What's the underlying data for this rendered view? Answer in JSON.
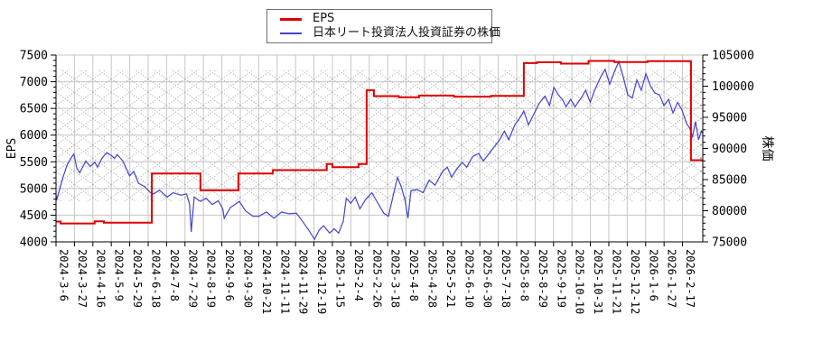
{
  "legend": {
    "items": [
      {
        "label": "EPS",
        "color": "#dd0000",
        "thickness": 3
      },
      {
        "label": "日本リート投資法人投資証券の株価",
        "color": "#4444cc",
        "thickness": 2
      }
    ]
  },
  "chart_data": {
    "type": "line",
    "title": "",
    "grid": {
      "vertical": "every-x-tick",
      "horizontal": "every-500-eps",
      "color": "#c6c6c6"
    },
    "hatch_band": {
      "axis": "right",
      "from": 81500,
      "to": 102700,
      "pattern": "dotted-crosshatch",
      "color": "#999999"
    },
    "left_axis": {
      "label": "EPS",
      "min": 4000,
      "max": 7500,
      "major_step": 500,
      "minor_step": 100,
      "ticks": [
        4000,
        4500,
        5000,
        5500,
        6000,
        6500,
        7000,
        7500
      ]
    },
    "right_axis": {
      "label": "株価",
      "min": 75000,
      "max": 105000,
      "major_step": 5000,
      "minor_step": 1000,
      "ticks": [
        75000,
        80000,
        85000,
        90000,
        95000,
        100000,
        105000
      ]
    },
    "x_axis": {
      "t_max": 35.1,
      "tick_labels": [
        "2024-3-6",
        "2024-3-27",
        "2024-4-16",
        "2024-5-9",
        "2024-5-29",
        "2024-6-18",
        "2024-7-8",
        "2024-7-29",
        "2024-8-19",
        "2024-9-6",
        "2024-9-30",
        "2024-10-21",
        "2024-11-11",
        "2024-11-29",
        "2024-12-19",
        "2025-1-15",
        "2025-2-4",
        "2025-2-26",
        "2025-3-18",
        "2025-4-8",
        "2025-4-28",
        "2025-5-21",
        "2025-6-10",
        "2025-6-30",
        "2025-7-18",
        "2025-8-8",
        "2025-8-29",
        "2025-9-19",
        "2025-10-10",
        "2025-10-31",
        "2025-11-21",
        "2025-12-12",
        "2026-1-6",
        "2026-1-27",
        "2026-2-17"
      ]
    },
    "series": [
      {
        "name": "EPS",
        "axis": "left",
        "color": "#dd0000",
        "width": 2,
        "style": "step",
        "points": [
          [
            0.0,
            4380
          ],
          [
            0.25,
            4380
          ],
          [
            0.25,
            4345
          ],
          [
            2.1,
            4345
          ],
          [
            2.1,
            4385
          ],
          [
            2.6,
            4385
          ],
          [
            2.6,
            4360
          ],
          [
            5.2,
            4360
          ],
          [
            5.2,
            5280
          ],
          [
            7.84,
            5280
          ],
          [
            7.84,
            4965
          ],
          [
            9.9,
            4965
          ],
          [
            9.9,
            5280
          ],
          [
            11.76,
            5280
          ],
          [
            11.76,
            5345
          ],
          [
            14.69,
            5345
          ],
          [
            14.69,
            5460
          ],
          [
            15.0,
            5460
          ],
          [
            15.0,
            5400
          ],
          [
            16.42,
            5400
          ],
          [
            16.42,
            5460
          ],
          [
            16.86,
            5460
          ],
          [
            16.86,
            6840
          ],
          [
            17.25,
            6840
          ],
          [
            17.25,
            6730
          ],
          [
            18.6,
            6730
          ],
          [
            18.6,
            6710
          ],
          [
            19.7,
            6710
          ],
          [
            19.7,
            6740
          ],
          [
            21.6,
            6740
          ],
          [
            21.6,
            6720
          ],
          [
            23.6,
            6720
          ],
          [
            23.6,
            6735
          ],
          [
            25.39,
            6735
          ],
          [
            25.39,
            7350
          ],
          [
            26.1,
            7350
          ],
          [
            26.1,
            7365
          ],
          [
            27.4,
            7365
          ],
          [
            27.4,
            7340
          ],
          [
            28.9,
            7340
          ],
          [
            28.9,
            7390
          ],
          [
            30.3,
            7390
          ],
          [
            30.3,
            7370
          ],
          [
            32.1,
            7370
          ],
          [
            32.1,
            7385
          ],
          [
            34.46,
            7385
          ],
          [
            34.46,
            5530
          ],
          [
            35.1,
            5530
          ]
        ]
      },
      {
        "name": "日本リート投資法人投資証券の株価",
        "axis": "right",
        "color": "#4444cc",
        "width": 1.2,
        "style": "line",
        "points": [
          [
            0.0,
            82600
          ],
          [
            0.03,
            81700
          ],
          [
            0.2,
            83500
          ],
          [
            0.39,
            85500
          ],
          [
            0.6,
            87300
          ],
          [
            0.8,
            88400
          ],
          [
            0.97,
            89100
          ],
          [
            1.13,
            86800
          ],
          [
            1.29,
            86100
          ],
          [
            1.62,
            88000
          ],
          [
            1.86,
            87100
          ],
          [
            2.11,
            87800
          ],
          [
            2.25,
            87000
          ],
          [
            2.51,
            88500
          ],
          [
            2.76,
            89350
          ],
          [
            2.99,
            88900
          ],
          [
            3.17,
            88400
          ],
          [
            3.33,
            89000
          ],
          [
            3.63,
            88000
          ],
          [
            3.99,
            85600
          ],
          [
            4.22,
            86300
          ],
          [
            4.48,
            84400
          ],
          [
            4.8,
            83900
          ],
          [
            5.13,
            82900
          ],
          [
            5.29,
            82700
          ],
          [
            5.62,
            83300
          ],
          [
            6.03,
            82200
          ],
          [
            6.36,
            82900
          ],
          [
            6.76,
            82500
          ],
          [
            7.09,
            82700
          ],
          [
            7.25,
            81000
          ],
          [
            7.34,
            76600
          ],
          [
            7.5,
            82200
          ],
          [
            7.83,
            81500
          ],
          [
            8.15,
            82000
          ],
          [
            8.48,
            81000
          ],
          [
            8.81,
            81600
          ],
          [
            9.05,
            80300
          ],
          [
            9.13,
            78800
          ],
          [
            9.46,
            80500
          ],
          [
            9.95,
            81500
          ],
          [
            10.28,
            80000
          ],
          [
            10.69,
            79100
          ],
          [
            11.01,
            79100
          ],
          [
            11.42,
            79800
          ],
          [
            11.83,
            78800
          ],
          [
            12.24,
            79800
          ],
          [
            12.65,
            79500
          ],
          [
            13.05,
            79600
          ],
          [
            13.38,
            78300
          ],
          [
            13.71,
            76900
          ],
          [
            14.03,
            75400
          ],
          [
            14.28,
            76900
          ],
          [
            14.52,
            77600
          ],
          [
            14.85,
            76400
          ],
          [
            15.1,
            77100
          ],
          [
            15.34,
            76400
          ],
          [
            15.59,
            78300
          ],
          [
            15.75,
            82000
          ],
          [
            16.0,
            81200
          ],
          [
            16.24,
            82200
          ],
          [
            16.49,
            80300
          ],
          [
            16.8,
            81800
          ],
          [
            17.14,
            82900
          ],
          [
            17.45,
            81300
          ],
          [
            17.79,
            79600
          ],
          [
            18.04,
            79100
          ],
          [
            18.28,
            82200
          ],
          [
            18.53,
            85350
          ],
          [
            18.73,
            83900
          ],
          [
            18.94,
            81700
          ],
          [
            19.1,
            78800
          ],
          [
            19.26,
            83200
          ],
          [
            19.59,
            83400
          ],
          [
            19.92,
            82900
          ],
          [
            20.25,
            84900
          ],
          [
            20.57,
            84100
          ],
          [
            20.98,
            86300
          ],
          [
            21.23,
            87000
          ],
          [
            21.47,
            85400
          ],
          [
            21.72,
            86600
          ],
          [
            22.04,
            87750
          ],
          [
            22.29,
            87000
          ],
          [
            22.61,
            88700
          ],
          [
            22.94,
            89200
          ],
          [
            23.19,
            88000
          ],
          [
            23.51,
            89200
          ],
          [
            23.76,
            90200
          ],
          [
            24.08,
            91400
          ],
          [
            24.33,
            92800
          ],
          [
            24.57,
            91400
          ],
          [
            24.9,
            93800
          ],
          [
            25.15,
            94800
          ],
          [
            25.39,
            96000
          ],
          [
            25.64,
            93800
          ],
          [
            25.96,
            95700
          ],
          [
            26.21,
            97200
          ],
          [
            26.53,
            98400
          ],
          [
            26.78,
            96900
          ],
          [
            27.02,
            99800
          ],
          [
            27.27,
            98600
          ],
          [
            27.51,
            97700
          ],
          [
            27.68,
            96700
          ],
          [
            27.93,
            97900
          ],
          [
            28.17,
            96700
          ],
          [
            28.5,
            98100
          ],
          [
            28.74,
            99350
          ],
          [
            28.99,
            97400
          ],
          [
            29.23,
            99350
          ],
          [
            29.56,
            101500
          ],
          [
            29.8,
            102700
          ],
          [
            30.05,
            100300
          ],
          [
            30.29,
            102250
          ],
          [
            30.54,
            103940
          ],
          [
            30.78,
            101500
          ],
          [
            31.03,
            98600
          ],
          [
            31.27,
            98100
          ],
          [
            31.52,
            101000
          ],
          [
            31.76,
            99350
          ],
          [
            32.01,
            102000
          ],
          [
            32.25,
            100070
          ],
          [
            32.5,
            98900
          ],
          [
            32.75,
            98600
          ],
          [
            32.99,
            96900
          ],
          [
            33.24,
            97900
          ],
          [
            33.48,
            95700
          ],
          [
            33.73,
            97400
          ],
          [
            33.97,
            96200
          ],
          [
            34.22,
            94000
          ],
          [
            34.38,
            93300
          ],
          [
            34.54,
            91900
          ],
          [
            34.71,
            94300
          ],
          [
            34.87,
            91400
          ],
          [
            35.03,
            92800
          ],
          [
            35.1,
            92400
          ]
        ]
      }
    ]
  }
}
